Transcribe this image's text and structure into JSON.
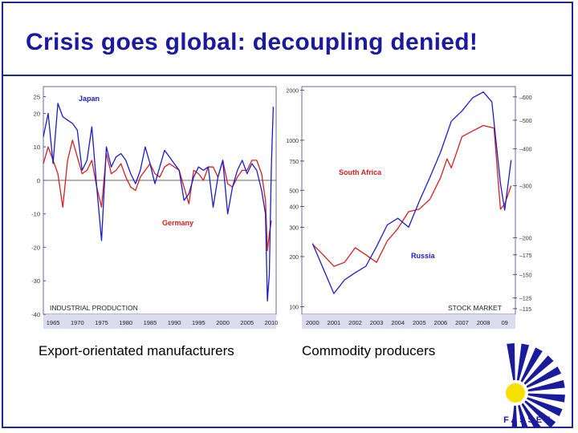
{
  "slide": {
    "title": "Crisis goes global: decoupling denied!",
    "captions": [
      "Export-orientated manufacturers",
      "Commodity producers"
    ],
    "logo_text": "F A S S E T"
  },
  "chart_data": [
    {
      "type": "line",
      "title": "INDUSTRIAL PRODUCTION",
      "xlabel": "",
      "ylabel": "",
      "xlim": [
        1963,
        2011
      ],
      "ylim": [
        -40,
        28
      ],
      "x_ticks": [
        "1965",
        "1970",
        "1975",
        "1980",
        "1985",
        "1990",
        "1995",
        "2000",
        "2005",
        "2010"
      ],
      "y_ticks": [
        "25",
        "20",
        "10",
        "0",
        "-10",
        "-20",
        "-30",
        "-40"
      ],
      "y_tick_values": [
        25,
        20,
        10,
        0,
        -10,
        -20,
        -30,
        -40
      ],
      "x_tick_values": [
        1965,
        1970,
        1975,
        1980,
        1985,
        1990,
        1995,
        2000,
        2005,
        2010
      ],
      "series": [
        {
          "name": "Japan",
          "color": "#1c1cc8",
          "points": [
            [
              1963,
              13
            ],
            [
              1964,
              20
            ],
            [
              1965,
              5
            ],
            [
              1966,
              23
            ],
            [
              1967,
              19
            ],
            [
              1968,
              18
            ],
            [
              1969,
              17
            ],
            [
              1970,
              15
            ],
            [
              1971,
              3
            ],
            [
              1972,
              6
            ],
            [
              1973,
              16
            ],
            [
              1974,
              -2
            ],
            [
              1975,
              -18
            ],
            [
              1976,
              10
            ],
            [
              1977,
              4
            ],
            [
              1978,
              7
            ],
            [
              1979,
              8
            ],
            [
              1980,
              6
            ],
            [
              1981,
              2
            ],
            [
              1982,
              -1
            ],
            [
              1983,
              3
            ],
            [
              1984,
              10
            ],
            [
              1985,
              5
            ],
            [
              1986,
              -1
            ],
            [
              1987,
              4
            ],
            [
              1988,
              9
            ],
            [
              1989,
              7
            ],
            [
              1990,
              5
            ],
            [
              1991,
              3
            ],
            [
              1992,
              -6
            ],
            [
              1993,
              -4
            ],
            [
              1994,
              1
            ],
            [
              1995,
              4
            ],
            [
              1996,
              3
            ],
            [
              1997,
              4
            ],
            [
              1998,
              -8
            ],
            [
              1999,
              1
            ],
            [
              2000,
              6
            ],
            [
              2001,
              -10
            ],
            [
              2002,
              -2
            ],
            [
              2003,
              3
            ],
            [
              2004,
              6
            ],
            [
              2005,
              2
            ],
            [
              2006,
              5
            ],
            [
              2007,
              3
            ],
            [
              2008,
              -3
            ],
            [
              2008.8,
              -10
            ],
            [
              2009.2,
              -36
            ],
            [
              2009.6,
              -28
            ],
            [
              2010,
              4
            ],
            [
              2010.4,
              22
            ]
          ]
        },
        {
          "name": "Germany",
          "color": "#d42020",
          "points": [
            [
              1963,
              5
            ],
            [
              1964,
              10
            ],
            [
              1965,
              6
            ],
            [
              1966,
              2
            ],
            [
              1967,
              -8
            ],
            [
              1968,
              6
            ],
            [
              1969,
              12
            ],
            [
              1970,
              7
            ],
            [
              1971,
              2
            ],
            [
              1972,
              3
            ],
            [
              1973,
              6
            ],
            [
              1974,
              -2
            ],
            [
              1975,
              -8
            ],
            [
              1976,
              8
            ],
            [
              1977,
              2
            ],
            [
              1978,
              3
            ],
            [
              1979,
              5
            ],
            [
              1980,
              1
            ],
            [
              1981,
              -2
            ],
            [
              1982,
              -3
            ],
            [
              1983,
              1
            ],
            [
              1984,
              3
            ],
            [
              1985,
              5
            ],
            [
              1986,
              2
            ],
            [
              1987,
              1
            ],
            [
              1988,
              4
            ],
            [
              1989,
              5
            ],
            [
              1990,
              4
            ],
            [
              1991,
              3
            ],
            [
              1992,
              -2
            ],
            [
              1993,
              -7
            ],
            [
              1994,
              3
            ],
            [
              1995,
              2
            ],
            [
              1996,
              0
            ],
            [
              1997,
              4
            ],
            [
              1998,
              4
            ],
            [
              1999,
              1
            ],
            [
              2000,
              6
            ],
            [
              2001,
              -1
            ],
            [
              2002,
              -2
            ],
            [
              2003,
              1
            ],
            [
              2004,
              3
            ],
            [
              2005,
              3
            ],
            [
              2006,
              6
            ],
            [
              2007,
              6
            ],
            [
              2008,
              2
            ],
            [
              2008.8,
              -6
            ],
            [
              2009.2,
              -21
            ],
            [
              2009.6,
              -16
            ],
            [
              2010,
              -12
            ]
          ]
        }
      ],
      "annotations": [
        "Japan",
        "Germany"
      ]
    },
    {
      "type": "line",
      "title": "STOCK MARKET",
      "xlabel": "",
      "ylabel": "",
      "xlim": [
        1999.5,
        2009.5
      ],
      "x_ticks": [
        "2000",
        "2001",
        "2002",
        "2003",
        "2004",
        "2005",
        "2006",
        "2007",
        "2008",
        "09"
      ],
      "x_tick_values": [
        2000,
        2001,
        2002,
        2003,
        2004,
        2005,
        2006,
        2007,
        2008,
        2009
      ],
      "y_left_ticks": [
        "2000",
        "1000",
        "750",
        "500",
        "400",
        "300",
        "200",
        "100"
      ],
      "y_left_tick_values": [
        2000,
        1000,
        750,
        500,
        400,
        300,
        200,
        100
      ],
      "y_left_scale": "log",
      "y_right_ticks": [
        "600",
        "500",
        "400",
        "300",
        "200",
        "175",
        "150",
        "125",
        "115"
      ],
      "y_right_tick_values": [
        600,
        500,
        400,
        300,
        200,
        175,
        150,
        125,
        115
      ],
      "series": [
        {
          "name": "South Africa",
          "axis": "right",
          "color": "#d42020",
          "points": [
            [
              2000,
              190
            ],
            [
              2000.5,
              175
            ],
            [
              2001,
              160
            ],
            [
              2001.5,
              165
            ],
            [
              2002,
              185
            ],
            [
              2002.5,
              175
            ],
            [
              2003,
              165
            ],
            [
              2003.5,
              195
            ],
            [
              2004,
              215
            ],
            [
              2004.5,
              245
            ],
            [
              2005,
              250
            ],
            [
              2005.5,
              270
            ],
            [
              2006,
              320
            ],
            [
              2006.3,
              370
            ],
            [
              2006.5,
              345
            ],
            [
              2007,
              440
            ],
            [
              2007.5,
              460
            ],
            [
              2008,
              480
            ],
            [
              2008.5,
              470
            ],
            [
              2008.8,
              250
            ],
            [
              2009,
              260
            ],
            [
              2009.3,
              300
            ]
          ]
        },
        {
          "name": "Russia",
          "axis": "left",
          "color": "#1c1cc8",
          "points": [
            [
              2000,
              240
            ],
            [
              2000.5,
              170
            ],
            [
              2001,
              120
            ],
            [
              2001.5,
              145
            ],
            [
              2002,
              160
            ],
            [
              2002.5,
              175
            ],
            [
              2003,
              230
            ],
            [
              2003.5,
              310
            ],
            [
              2004,
              340
            ],
            [
              2004.5,
              300
            ],
            [
              2005,
              430
            ],
            [
              2005.5,
              600
            ],
            [
              2006,
              850
            ],
            [
              2006.5,
              1300
            ],
            [
              2007,
              1500
            ],
            [
              2007.5,
              1800
            ],
            [
              2008,
              1950
            ],
            [
              2008.4,
              1700
            ],
            [
              2008.8,
              550
            ],
            [
              2009,
              380
            ],
            [
              2009.3,
              760
            ]
          ]
        }
      ],
      "annotations": [
        "South Africa",
        "Russia"
      ]
    }
  ]
}
